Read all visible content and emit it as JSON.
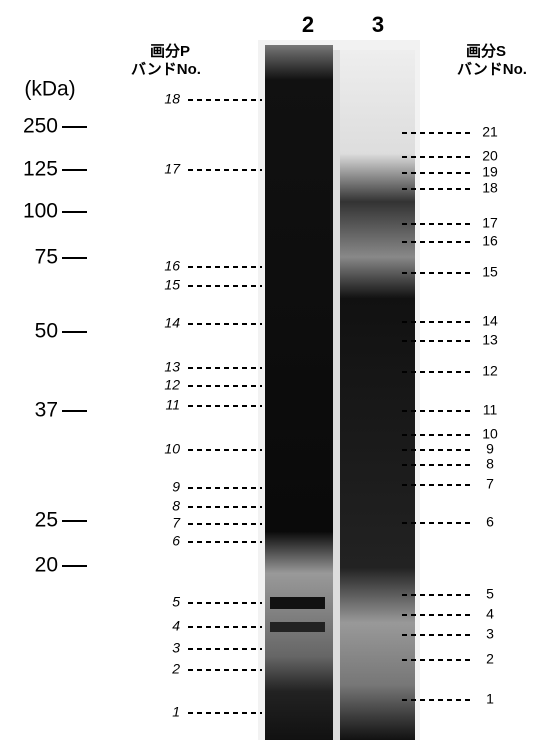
{
  "lanes": [
    "2",
    "3"
  ],
  "unit": "(kDa)",
  "markers": [
    "250",
    "125",
    "100",
    "75",
    "50",
    "37",
    "25",
    "20"
  ],
  "left_header": {
    "title": "画分P",
    "subtitle": "バンドNo."
  },
  "right_header": {
    "title": "画分S",
    "subtitle": "バンドNo."
  },
  "left_bands": [
    "1",
    "2",
    "3",
    "4",
    "5",
    "6",
    "7",
    "8",
    "9",
    "10",
    "11",
    "12",
    "13",
    "14",
    "15",
    "16",
    "17",
    "18"
  ],
  "right_bands": [
    "1",
    "2",
    "3",
    "4",
    "5",
    "6",
    "7",
    "8",
    "9",
    "10",
    "11",
    "12",
    "13",
    "14",
    "15",
    "16",
    "17",
    "18",
    "19",
    "20",
    "21"
  ]
}
